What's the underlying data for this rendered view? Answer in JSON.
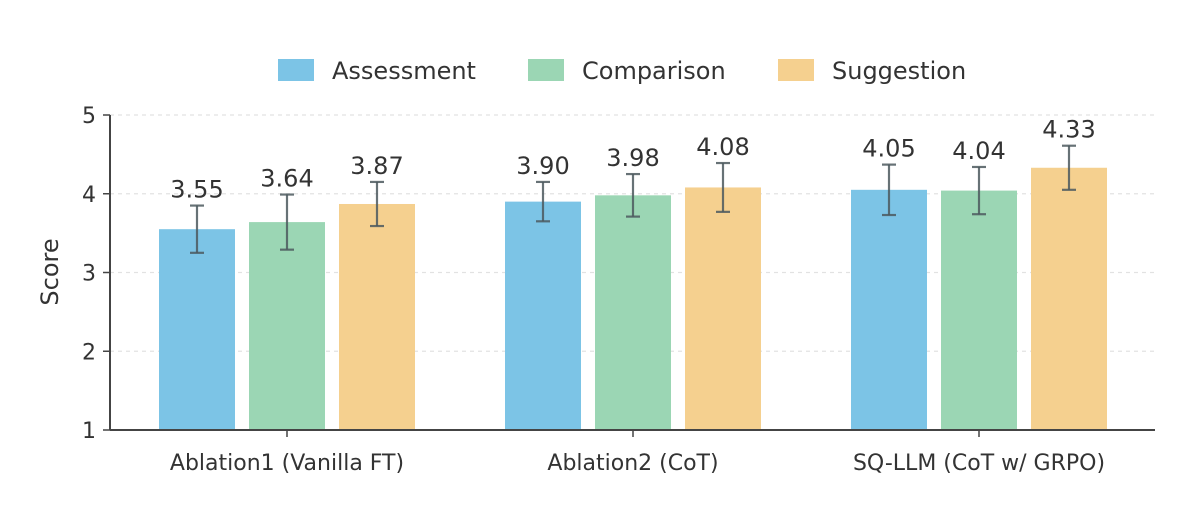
{
  "chart_data": {
    "type": "bar",
    "title": "",
    "xlabel": "",
    "ylabel": "Score",
    "ylim": [
      1,
      5
    ],
    "yticks": [
      1,
      2,
      3,
      4,
      5
    ],
    "grid": true,
    "legend_position": "top-center",
    "categories": [
      "Ablation1 (Vanilla FT)",
      "Ablation2 (CoT)",
      "SQ-LLM (CoT w/ GRPO)"
    ],
    "series": [
      {
        "name": "Assessment",
        "color": "#7cc4e6",
        "values": [
          3.55,
          3.9,
          4.05
        ],
        "labels": [
          "3.55",
          "3.90",
          "4.05"
        ],
        "error": [
          0.3,
          0.25,
          0.32
        ]
      },
      {
        "name": "Comparison",
        "color": "#9bd6b4",
        "values": [
          3.64,
          3.98,
          4.04
        ],
        "labels": [
          "3.64",
          "3.98",
          "4.04"
        ],
        "error": [
          0.35,
          0.27,
          0.3
        ]
      },
      {
        "name": "Suggestion",
        "color": "#f5d08f",
        "values": [
          3.87,
          4.08,
          4.33
        ],
        "labels": [
          "3.87",
          "4.08",
          "4.33"
        ],
        "error": [
          0.28,
          0.31,
          0.28
        ]
      }
    ]
  }
}
